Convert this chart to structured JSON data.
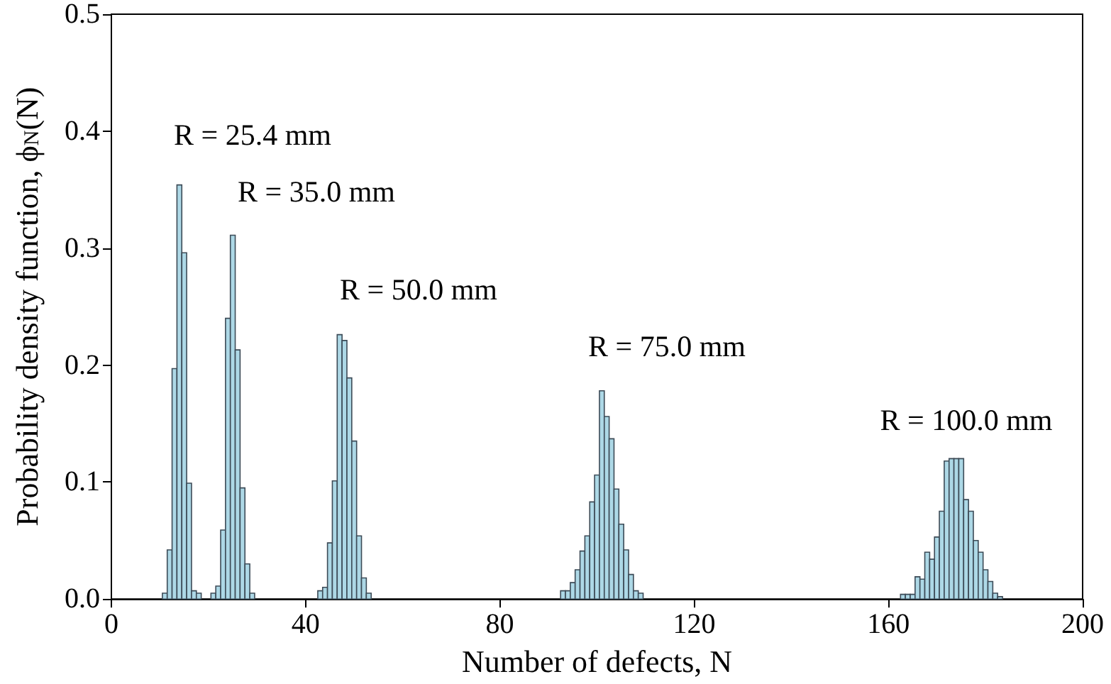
{
  "chart_data": {
    "type": "histogram",
    "xlabel": "Number of defects, N",
    "ylabel": "Probability density function, ϕ$_{N}$(N)",
    "xlim": [
      0,
      200
    ],
    "xticks": [
      0,
      40,
      80,
      120,
      160,
      200
    ],
    "ylim": [
      0,
      0.5
    ],
    "yticks": [
      {
        "value": 0,
        "label": "0.0"
      },
      0.1,
      0.2,
      0.3,
      0.4,
      0.5
    ],
    "grid": false,
    "color": "#add8e6",
    "bins": [
      10.5,
      11.5,
      12.5,
      13.5,
      14.5,
      15.5,
      16.5,
      17.5,
      18.5,
      19.5,
      20.5,
      21.5,
      22.5,
      23.5,
      24.5,
      25.5,
      26.5,
      27.5,
      28.5,
      29.5,
      30.5,
      31.5,
      32.5,
      33.5,
      34.5,
      35.5,
      36.5,
      37.5,
      38.5,
      39.5,
      40.5,
      41.5,
      42.5,
      43.5,
      44.5,
      45.5,
      46.5,
      47.5,
      48.5,
      49.5,
      50.5,
      51.5,
      52.5,
      53.5,
      54.5,
      55.5,
      56.5,
      57.5,
      58.5,
      59.5,
      60.5,
      61.5,
      62.5,
      63.5,
      64.5,
      65.5,
      66.5,
      67.5,
      68.5,
      69.5,
      70.5,
      71.5,
      72.5,
      73.5,
      74.5,
      75.5,
      76.5,
      77.5,
      78.5,
      79.5,
      80.5,
      81.5,
      82.5,
      83.5,
      84.5,
      85.5,
      86.5,
      87.5,
      88.5,
      89.5,
      90.5,
      91.5,
      92.5,
      93.5,
      94.5,
      95.5,
      96.5,
      97.5,
      98.5,
      99.5,
      100.5,
      101.5,
      102.5,
      103.5,
      104.5,
      105.5,
      106.5,
      107.5,
      108.5,
      109.5,
      110.5,
      111.5,
      112.5,
      113.5,
      114.5,
      115.5,
      116.5,
      117.5,
      118.5,
      119.5,
      120.5,
      121.5,
      122.5,
      123.5,
      124.5,
      125.5,
      126.5,
      127.5,
      128.5,
      129.5,
      130.5,
      131.5,
      132.5,
      133.5,
      134.5,
      135.5,
      136.5,
      137.5,
      138.5,
      139.5,
      140.5,
      141.5,
      142.5,
      143.5,
      144.5,
      145.5,
      146.5,
      147.5,
      148.5,
      149.5,
      150.5,
      151.5,
      152.5,
      153.5,
      154.5,
      155.5,
      156.5,
      157.5,
      158.5,
      159.5,
      160.5,
      161.5,
      162.5,
      163.5,
      164.5,
      165.5,
      166.5,
      167.5,
      168.5,
      169.5,
      170.5,
      171.5,
      172.5,
      173.5,
      174.5,
      175.5,
      176.5,
      177.5,
      178.5,
      179.5,
      180.5,
      181.5,
      182.5,
      183.5
    ],
    "values": [
      0.005,
      0.042,
      0.197,
      0.354,
      0.296,
      0.099,
      0.007,
      0.005,
      0,
      0,
      0.005,
      0.011,
      0.059,
      0.24,
      0.311,
      0.213,
      0.095,
      0.03,
      0.005,
      0,
      0,
      0,
      0,
      0,
      0,
      0,
      0,
      0,
      0,
      0,
      0,
      0,
      0.007,
      0.01,
      0.048,
      0.101,
      0.226,
      0.221,
      0.189,
      0.135,
      0.054,
      0.018,
      0.005,
      0,
      0,
      0,
      0,
      0,
      0,
      0,
      0,
      0,
      0,
      0,
      0,
      0,
      0,
      0,
      0,
      0,
      0,
      0,
      0,
      0,
      0,
      0,
      0,
      0,
      0,
      0,
      0,
      0,
      0,
      0,
      0,
      0,
      0,
      0,
      0,
      0,
      0,
      0,
      0.007,
      0.007,
      0.014,
      0.025,
      0.041,
      0.054,
      0.083,
      0.106,
      0.178,
      0.156,
      0.137,
      0.094,
      0.064,
      0.042,
      0.021,
      0.007,
      0.005,
      0,
      0,
      0,
      0,
      0,
      0,
      0,
      0,
      0,
      0,
      0,
      0,
      0,
      0,
      0,
      0,
      0,
      0,
      0,
      0,
      0,
      0,
      0,
      0,
      0,
      0,
      0,
      0,
      0,
      0,
      0,
      0,
      0,
      0,
      0,
      0,
      0,
      0,
      0,
      0,
      0,
      0,
      0,
      0,
      0,
      0,
      0,
      0,
      0,
      0,
      0,
      0,
      0,
      0.004,
      0.004,
      0.004,
      0.019,
      0.017,
      0.04,
      0.034,
      0.053,
      0.075,
      0.118,
      0.12,
      0.12,
      0.12,
      0.085,
      0.075,
      0.05,
      0.04,
      0.025,
      0.015,
      0.005,
      0.002
    ],
    "annotations": [
      "R = 25.4 mm",
      "R = 35.0 mm",
      "R = 50.0 mm",
      "R = 75.0 mm",
      "R = 100.0 mm"
    ]
  }
}
